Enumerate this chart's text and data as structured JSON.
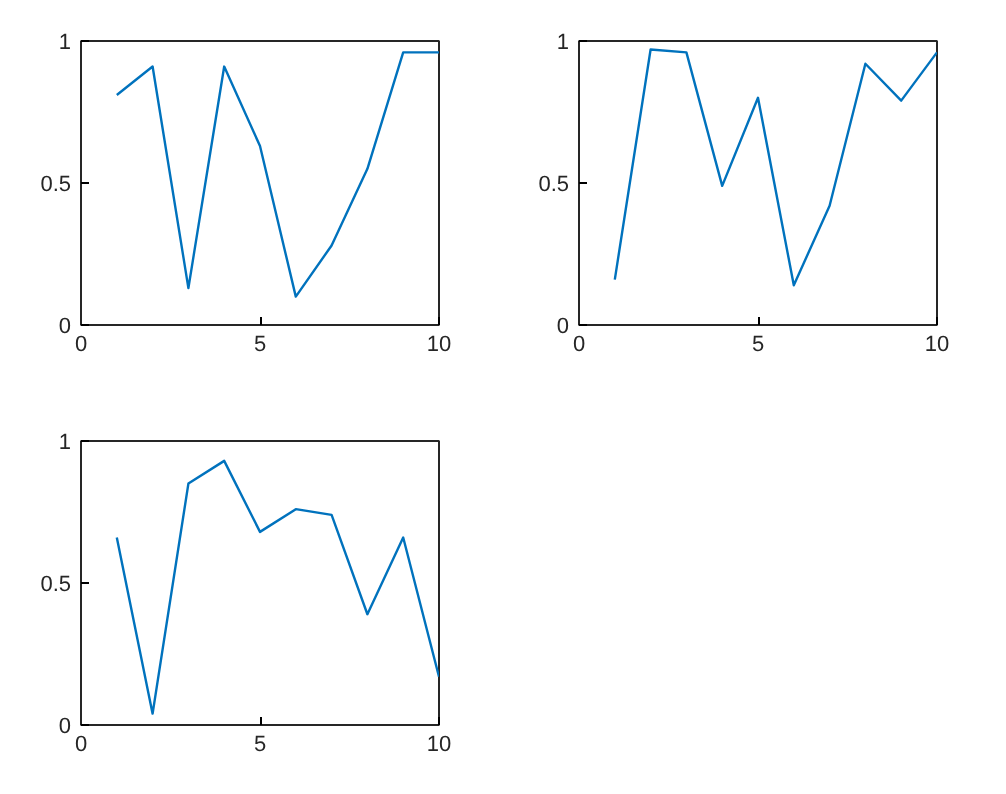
{
  "chart_data": [
    {
      "type": "line",
      "x": [
        1,
        2,
        3,
        4,
        5,
        6,
        7,
        8,
        9,
        10
      ],
      "series": [
        {
          "color": "#0072bd",
          "values": [
            0.81,
            0.91,
            0.13,
            0.91,
            0.63,
            0.1,
            0.28,
            0.55,
            0.96,
            0.96
          ]
        }
      ],
      "xlim": [
        0,
        10
      ],
      "ylim": [
        0,
        1
      ],
      "xticks": [
        0,
        5,
        10
      ],
      "yticks": [
        0,
        0.5,
        1
      ]
    },
    {
      "type": "line",
      "x": [
        1,
        2,
        3,
        4,
        5,
        6,
        7,
        8,
        9,
        10
      ],
      "series": [
        {
          "color": "#0072bd",
          "values": [
            0.16,
            0.97,
            0.96,
            0.49,
            0.8,
            0.14,
            0.42,
            0.92,
            0.79,
            0.96
          ]
        }
      ],
      "xlim": [
        0,
        10
      ],
      "ylim": [
        0,
        1
      ],
      "xticks": [
        0,
        5,
        10
      ],
      "yticks": [
        0,
        0.5,
        1
      ]
    },
    {
      "type": "line",
      "x": [
        1,
        2,
        3,
        4,
        5,
        6,
        7,
        8,
        9,
        10
      ],
      "series": [
        {
          "color": "#0072bd",
          "values": [
            0.66,
            0.04,
            0.85,
            0.93,
            0.68,
            0.76,
            0.74,
            0.39,
            0.66,
            0.17
          ]
        }
      ],
      "xlim": [
        0,
        10
      ],
      "ylim": [
        0,
        1
      ],
      "xticks": [
        0,
        5,
        10
      ],
      "yticks": [
        0,
        0.5,
        1
      ]
    }
  ]
}
